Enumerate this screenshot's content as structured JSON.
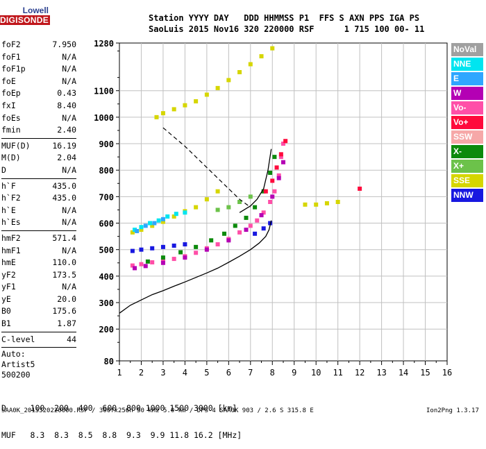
{
  "logo": {
    "line1": "Lowell",
    "line2": "DIGISONDE"
  },
  "header": {
    "line1": "Station YYYY DAY   DDD HHMMSS P1  FFS S AXN PPS IGA PS",
    "line2": "SaoLuis 2015 Nov16 320 220000 RSF      1 715 100 00- 11"
  },
  "params": {
    "group1": [
      {
        "label": "foF2",
        "value": "7.950"
      },
      {
        "label": "foF1",
        "value": "N/A"
      },
      {
        "label": "foF1p",
        "value": "N/A"
      },
      {
        "label": "foE",
        "value": "N/A"
      },
      {
        "label": "foEp",
        "value": "0.43"
      },
      {
        "label": "fxI",
        "value": "8.40"
      },
      {
        "label": "foEs",
        "value": "N/A"
      },
      {
        "label": "fmin",
        "value": "2.40"
      }
    ],
    "group2": [
      {
        "label": "MUF(D)",
        "value": "16.19"
      },
      {
        "label": "M(D)",
        "value": "2.04"
      },
      {
        "label": "D",
        "value": "N/A"
      }
    ],
    "group3": [
      {
        "label": "h`F",
        "value": "435.0"
      },
      {
        "label": "h`F2",
        "value": "435.0"
      },
      {
        "label": "h`E",
        "value": "N/A"
      },
      {
        "label": "h`Es",
        "value": "N/A"
      }
    ],
    "group4": [
      {
        "label": "hmF2",
        "value": "571.4"
      },
      {
        "label": "hmF1",
        "value": "N/A"
      },
      {
        "label": "hmE",
        "value": "110.0"
      },
      {
        "label": "yF2",
        "value": "173.5"
      },
      {
        "label": "yF1",
        "value": "N/A"
      },
      {
        "label": "yE",
        "value": "20.0"
      },
      {
        "label": "B0",
        "value": "175.6"
      },
      {
        "label": "B1",
        "value": "1.87"
      }
    ],
    "group5": [
      {
        "label": "C-level",
        "value": "44"
      }
    ],
    "auto": [
      "Auto:",
      "Artist5",
      "500200"
    ]
  },
  "dmuf": {
    "line1": "D     100  200  400  600  800 1000 1500 3000 [km]",
    "line2": "MUF   8.3  8.3  8.5  8.8  9.3  9.9 11.8 16.2 [MHz]"
  },
  "footer": "SAA0K_2015320220000.RSF / 300fx256h 50 kHz 5.0 km / DPS-4 SAA0K 903 / 2.6 S 315.8 E",
  "version": "Ion2Png 1.3.17",
  "legend": [
    {
      "label": "NoVal",
      "color": "#a0a0a0"
    },
    {
      "label": "NNE",
      "color": "#00e5f0"
    },
    {
      "label": "E",
      "color": "#2fa6ff"
    },
    {
      "label": "W",
      "color": "#b400b4"
    },
    {
      "label": "Vo-",
      "color": "#ff4fa8"
    },
    {
      "label": "Vo+",
      "color": "#ff0a3c"
    },
    {
      "label": "SSW",
      "color": "#f6a8a8"
    },
    {
      "label": "X-",
      "color": "#0c8a0c"
    },
    {
      "label": "X+",
      "color": "#6cc24a"
    },
    {
      "label": "SSE",
      "color": "#d6d600"
    },
    {
      "label": "NNW",
      "color": "#1818e0"
    }
  ],
  "chart_data": {
    "type": "scatter",
    "x_ticks": [
      1,
      2,
      3,
      4,
      5,
      6,
      7,
      8,
      9,
      10,
      11,
      12,
      13,
      14,
      15,
      16
    ],
    "y_ticks": [
      80,
      200,
      300,
      400,
      500,
      600,
      700,
      800,
      900,
      1000,
      1100,
      1280
    ],
    "xlim": [
      1,
      16
    ],
    "ylim": [
      80,
      1280
    ],
    "grid": true,
    "legend_position": "right",
    "series": [
      {
        "name": "Vo-",
        "color": "#ff4fa8",
        "points": [
          [
            1.6,
            440
          ],
          [
            2.0,
            445
          ],
          [
            2.5,
            452
          ],
          [
            3.0,
            458
          ],
          [
            3.5,
            465
          ],
          [
            4.0,
            475
          ],
          [
            4.5,
            488
          ],
          [
            5.0,
            505
          ],
          [
            5.5,
            520
          ],
          [
            6.0,
            540
          ],
          [
            6.5,
            565
          ],
          [
            7.0,
            590
          ],
          [
            7.3,
            610
          ],
          [
            7.6,
            640
          ],
          [
            7.9,
            680
          ],
          [
            8.1,
            720
          ],
          [
            8.3,
            780
          ],
          [
            8.4,
            850
          ],
          [
            8.5,
            900
          ]
        ]
      },
      {
        "name": "X-",
        "color": "#0c8a0c",
        "points": [
          [
            2.3,
            455
          ],
          [
            3.0,
            470
          ],
          [
            3.8,
            490
          ],
          [
            4.5,
            510
          ],
          [
            5.2,
            535
          ],
          [
            5.8,
            560
          ],
          [
            6.3,
            590
          ],
          [
            6.8,
            620
          ],
          [
            7.2,
            660
          ],
          [
            7.6,
            720
          ],
          [
            7.9,
            790
          ],
          [
            8.1,
            850
          ]
        ]
      },
      {
        "name": "W",
        "color": "#b400b4",
        "points": [
          [
            1.7,
            430
          ],
          [
            2.2,
            438
          ],
          [
            3.0,
            450
          ],
          [
            4.0,
            470
          ],
          [
            5.0,
            500
          ],
          [
            6.0,
            535
          ],
          [
            6.8,
            575
          ],
          [
            7.5,
            630
          ],
          [
            8.0,
            700
          ],
          [
            8.3,
            770
          ],
          [
            8.5,
            830
          ]
        ]
      },
      {
        "name": "NNW",
        "color": "#1818e0",
        "points": [
          [
            1.6,
            495
          ],
          [
            2.0,
            500
          ],
          [
            2.5,
            505
          ],
          [
            3.0,
            510
          ],
          [
            3.5,
            515
          ],
          [
            4.0,
            520
          ],
          [
            7.2,
            560
          ],
          [
            7.6,
            580
          ],
          [
            7.9,
            600
          ]
        ]
      },
      {
        "name": "SSE",
        "color": "#d6d600",
        "points": [
          [
            1.6,
            565
          ],
          [
            2.0,
            575
          ],
          [
            2.5,
            590
          ],
          [
            3.0,
            605
          ],
          [
            3.5,
            625
          ],
          [
            4.0,
            645
          ],
          [
            4.5,
            660
          ],
          [
            5.0,
            690
          ],
          [
            5.5,
            720
          ],
          [
            2.7,
            1000
          ],
          [
            3.0,
            1015
          ],
          [
            3.5,
            1030
          ],
          [
            4.0,
            1045
          ],
          [
            4.5,
            1060
          ],
          [
            5.0,
            1085
          ],
          [
            5.5,
            1110
          ],
          [
            6.0,
            1140
          ],
          [
            6.5,
            1170
          ],
          [
            7.0,
            1200
          ],
          [
            7.5,
            1230
          ],
          [
            8.0,
            1260
          ],
          [
            9.5,
            670
          ],
          [
            10.0,
            670
          ],
          [
            10.5,
            675
          ],
          [
            11.0,
            680
          ]
        ]
      },
      {
        "name": "NNE",
        "color": "#00e5f0",
        "points": [
          [
            1.7,
            575
          ],
          [
            2.0,
            585
          ],
          [
            2.4,
            600
          ],
          [
            2.8,
            610
          ],
          [
            3.2,
            625
          ],
          [
            3.6,
            635
          ],
          [
            4.0,
            640
          ]
        ]
      },
      {
        "name": "E",
        "color": "#2fa6ff",
        "points": [
          [
            1.8,
            570
          ],
          [
            2.2,
            590
          ],
          [
            2.6,
            600
          ],
          [
            3.0,
            615
          ]
        ]
      },
      {
        "name": "Vo+",
        "color": "#ff0a3c",
        "points": [
          [
            7.7,
            720
          ],
          [
            8.0,
            760
          ],
          [
            8.2,
            810
          ],
          [
            8.4,
            860
          ],
          [
            8.6,
            910
          ],
          [
            12.0,
            730
          ]
        ]
      },
      {
        "name": "X+",
        "color": "#6cc24a",
        "points": [
          [
            5.5,
            650
          ],
          [
            6.0,
            660
          ],
          [
            6.5,
            680
          ],
          [
            7.0,
            700
          ]
        ]
      }
    ],
    "profile_curve": [
      [
        1.0,
        260
      ],
      [
        1.5,
        290
      ],
      [
        2.0,
        310
      ],
      [
        2.5,
        330
      ],
      [
        3.0,
        345
      ],
      [
        3.5,
        362
      ],
      [
        4.0,
        378
      ],
      [
        4.5,
        395
      ],
      [
        5.0,
        412
      ],
      [
        5.5,
        430
      ],
      [
        6.0,
        452
      ],
      [
        6.5,
        475
      ],
      [
        7.0,
        500
      ],
      [
        7.4,
        525
      ],
      [
        7.7,
        550
      ],
      [
        7.85,
        575
      ],
      [
        7.95,
        610
      ]
    ],
    "trace_curve": [
      [
        6.5,
        640
      ],
      [
        7.0,
        665
      ],
      [
        7.3,
        690
      ],
      [
        7.6,
        730
      ],
      [
        7.8,
        800
      ],
      [
        7.95,
        880
      ]
    ],
    "dashed_line": [
      [
        3.0,
        960
      ],
      [
        4.0,
        890
      ],
      [
        5.0,
        810
      ],
      [
        6.0,
        730
      ],
      [
        6.5,
        690
      ],
      [
        7.0,
        660
      ]
    ]
  }
}
